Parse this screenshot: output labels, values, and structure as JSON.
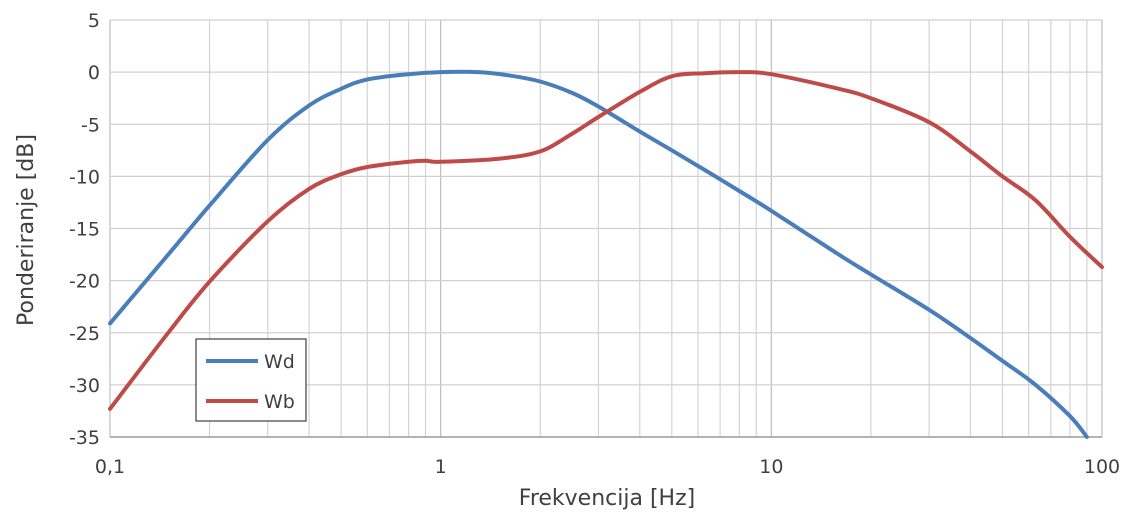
{
  "chart_data": {
    "type": "line",
    "xlabel": "Frekvencija [Hz]",
    "ylabel": "Ponderiranje [dB]",
    "x_scale": "log",
    "xlim": [
      0.1,
      100
    ],
    "ylim": [
      -35,
      5
    ],
    "x_ticks": [
      {
        "value": 0.1,
        "label": "0,1"
      },
      {
        "value": 1,
        "label": "1"
      },
      {
        "value": 10,
        "label": "10"
      },
      {
        "value": 100,
        "label": "100"
      }
    ],
    "y_ticks": [
      {
        "value": 5,
        "label": "5"
      },
      {
        "value": 0,
        "label": "0"
      },
      {
        "value": -5,
        "label": "-5"
      },
      {
        "value": -10,
        "label": "-10"
      },
      {
        "value": -15,
        "label": "-15"
      },
      {
        "value": -20,
        "label": "-20"
      },
      {
        "value": -25,
        "label": "-25"
      },
      {
        "value": -30,
        "label": "-30"
      },
      {
        "value": -35,
        "label": "-35"
      }
    ],
    "grid": true,
    "legend_position": "bottom-left",
    "series": [
      {
        "name": "Wd",
        "color": "#4a7ebb",
        "points": [
          [
            0.1,
            -24.1
          ],
          [
            0.15,
            -17.5
          ],
          [
            0.2,
            -12.8
          ],
          [
            0.3,
            -6.5
          ],
          [
            0.4,
            -3.2
          ],
          [
            0.5,
            -1.6
          ],
          [
            0.6,
            -0.7
          ],
          [
            0.8,
            -0.2
          ],
          [
            1.0,
            0.0
          ],
          [
            1.3,
            0.0
          ],
          [
            1.6,
            -0.3
          ],
          [
            2.0,
            -0.9
          ],
          [
            2.5,
            -2.0
          ],
          [
            3.0,
            -3.3
          ],
          [
            4.0,
            -5.7
          ],
          [
            5.0,
            -7.5
          ],
          [
            6.3,
            -9.4
          ],
          [
            8.0,
            -11.4
          ],
          [
            10.0,
            -13.3
          ],
          [
            16.0,
            -17.5
          ],
          [
            20.0,
            -19.4
          ],
          [
            30.0,
            -22.8
          ],
          [
            40.0,
            -25.5
          ],
          [
            50.0,
            -27.7
          ],
          [
            63.0,
            -30.0
          ],
          [
            80.0,
            -33.0
          ],
          [
            90.0,
            -35.0
          ]
        ]
      },
      {
        "name": "Wb",
        "color": "#be4b48",
        "points": [
          [
            0.1,
            -32.3
          ],
          [
            0.15,
            -25.0
          ],
          [
            0.2,
            -20.1
          ],
          [
            0.3,
            -14.3
          ],
          [
            0.4,
            -11.2
          ],
          [
            0.5,
            -9.8
          ],
          [
            0.6,
            -9.1
          ],
          [
            0.8,
            -8.6
          ],
          [
            0.9,
            -8.5
          ],
          [
            1.0,
            -8.6
          ],
          [
            1.5,
            -8.3
          ],
          [
            2.0,
            -7.6
          ],
          [
            2.5,
            -5.9
          ],
          [
            3.0,
            -4.3
          ],
          [
            4.0,
            -1.9
          ],
          [
            5.0,
            -0.4
          ],
          [
            6.3,
            -0.1
          ],
          [
            8.0,
            0.0
          ],
          [
            10.0,
            -0.2
          ],
          [
            16.0,
            -1.6
          ],
          [
            20.0,
            -2.5
          ],
          [
            30.0,
            -4.8
          ],
          [
            40.0,
            -7.6
          ],
          [
            50.0,
            -10.0
          ],
          [
            63.0,
            -12.3
          ],
          [
            80.0,
            -15.8
          ],
          [
            100.0,
            -18.7
          ]
        ]
      }
    ]
  }
}
